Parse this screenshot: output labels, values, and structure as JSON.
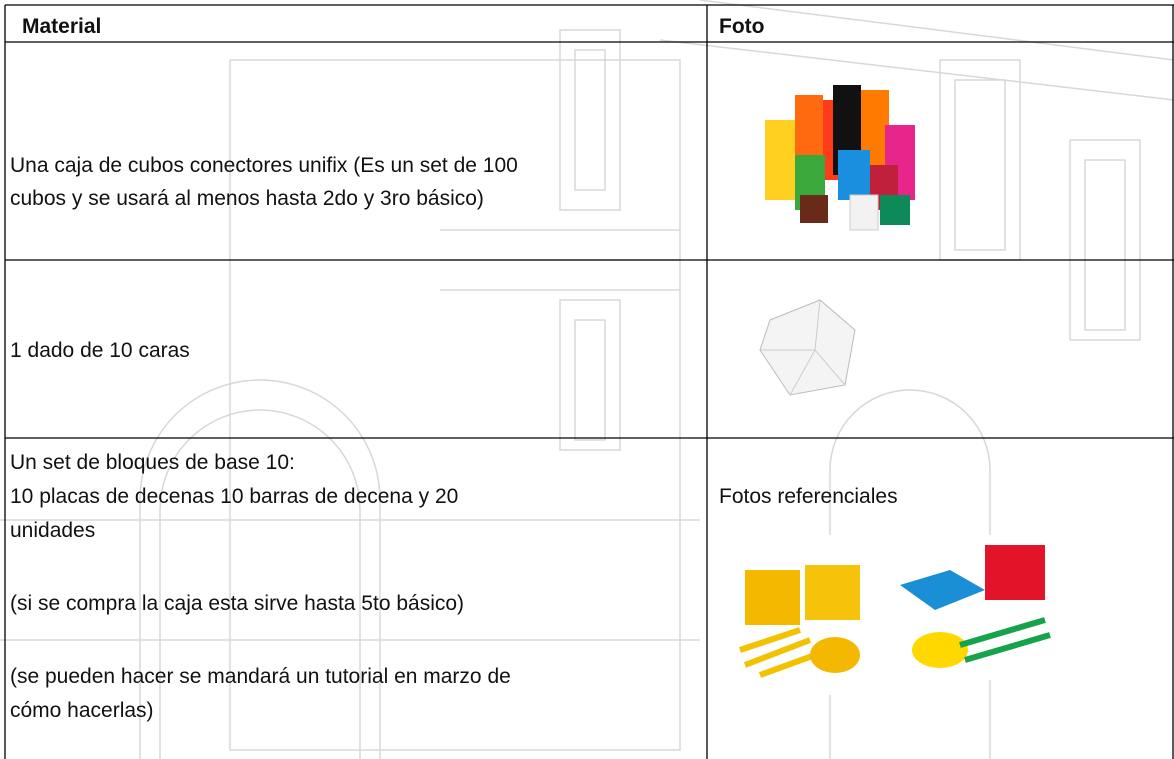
{
  "table": {
    "header": [
      "Material",
      "Foto"
    ],
    "rows": [
      {
        "material": [
          [
            "Una caja de cubos conectores unifix (Es un set de 100",
            "cubos y se usará al menos hasta 2do y 3ro básico)"
          ]
        ]
      },
      {
        "material": [
          [
            "1 dado de 10 caras"
          ]
        ]
      },
      {
        "material": [
          [
            "Un set de bloques de base 10:",
            "10 placas de decenas 10 barras de decena y 20",
            "unidades"
          ],
          [
            "(si se compra la caja esta sirve hasta 5to básico)"
          ],
          [
            "(se pueden hacer se mandará un tutorial en marzo de",
            "cómo hacerlas)"
          ]
        ],
        "photo_caption": "Fotos referenciales"
      }
    ]
  }
}
